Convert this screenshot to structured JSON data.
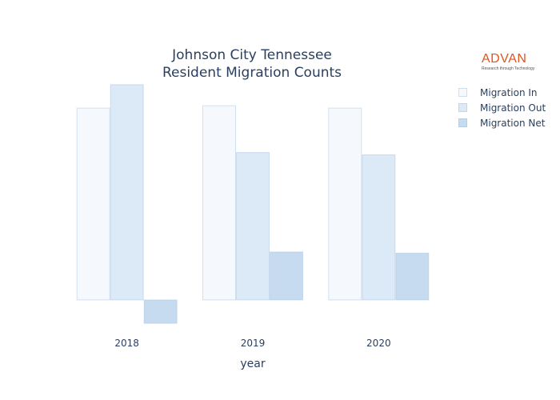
{
  "chart_data": {
    "type": "bar",
    "title": "Johnson City Tennessee",
    "subtitle": "Resident Migration Counts",
    "xlabel": "year",
    "ylabel": "",
    "categories": [
      "2018",
      "2019",
      "2020"
    ],
    "series": [
      {
        "name": "Migration In",
        "values": [
          8200,
          8300,
          8200
        ],
        "color": "#f5f9fd"
      },
      {
        "name": "Migration Out",
        "values": [
          9200,
          6300,
          6200
        ],
        "color": "#dce9f6"
      },
      {
        "name": "Migration Net",
        "values": [
          -1000,
          2050,
          2000
        ],
        "color": "#c6dbef"
      }
    ],
    "ylim": [
      -1200,
      9400
    ],
    "grid": false,
    "legend_position": "top-right"
  },
  "logo": {
    "word": "ADVAN",
    "tagline": "Research through Technology",
    "color": "#e0551f"
  }
}
